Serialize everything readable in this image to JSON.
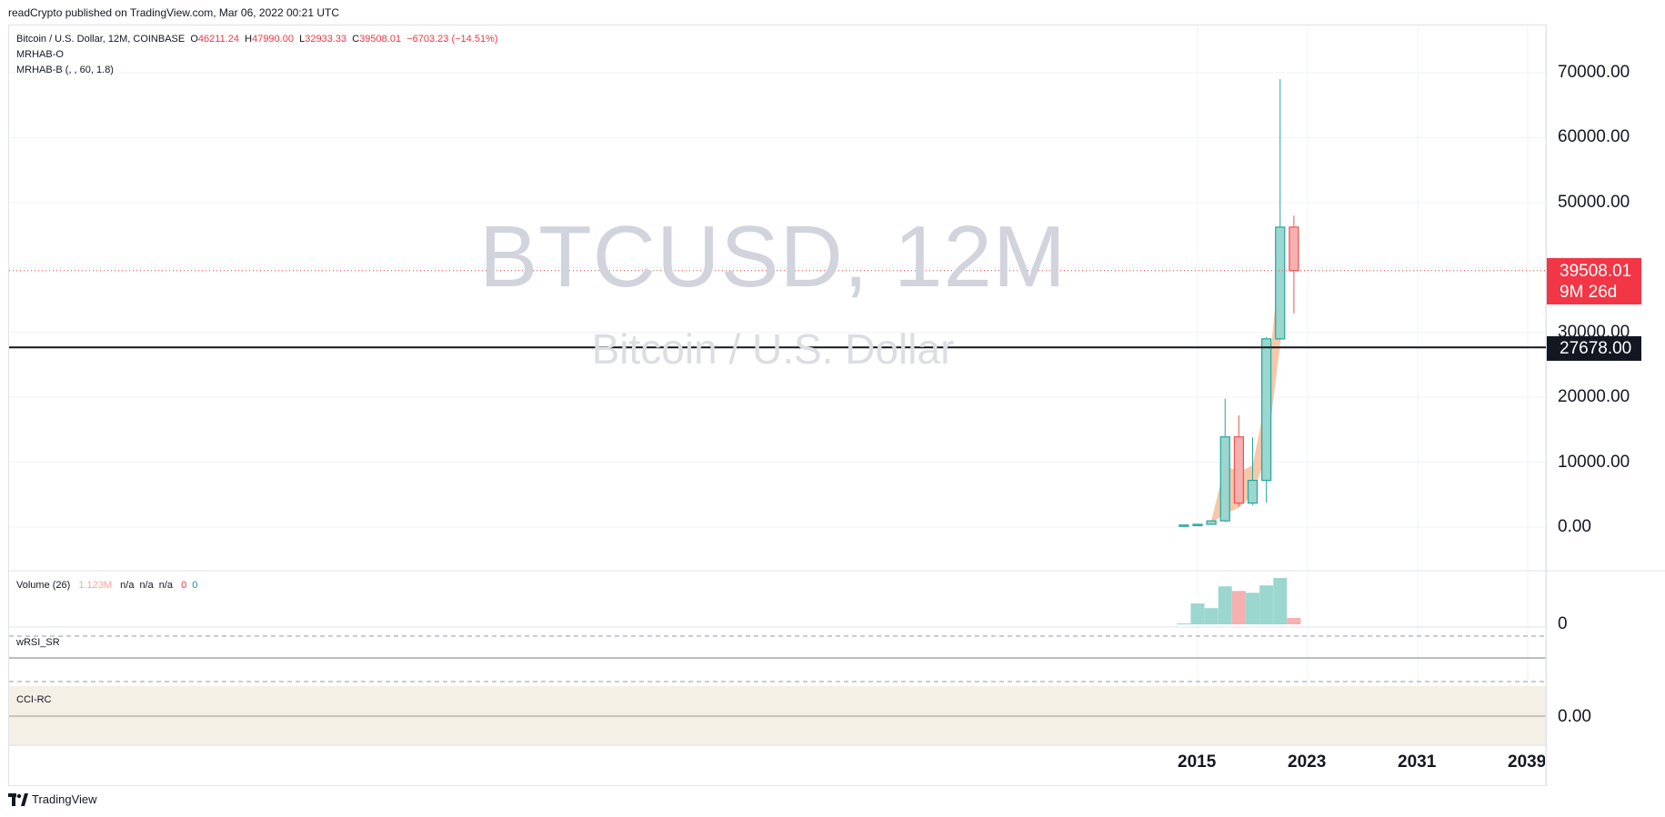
{
  "header": {
    "published_text": "readCrypto published on TradingView.com, Mar 06, 2022 00:21 UTC"
  },
  "legend": {
    "symbol": "Bitcoin / U.S. Dollar, 12M, COINBASE",
    "open_label": "O",
    "open": "46211.24",
    "high_label": "H",
    "high": "47990.00",
    "low_label": "L",
    "low": "32933.33",
    "close_label": "C",
    "close": "39508.01",
    "change": "−6703.23 (−14.51%)",
    "indicator_1": "MRHAB-O",
    "indicator_2": "MRHAB-B (, , 60, 1.8)"
  },
  "watermark": {
    "main": "BTCUSD, 12M",
    "sub": "Bitcoin / U.S. Dollar"
  },
  "volume_pane": {
    "title": "Volume (26)",
    "value": "1.123M",
    "na_1": "n/a",
    "na_2": "n/a",
    "na_3": "n/a",
    "zero_1": "0",
    "zero_2": "0",
    "axis_label": "0"
  },
  "wrsi_pane": {
    "title": "wRSI_SR"
  },
  "cci_pane": {
    "title": "CCI-RC",
    "axis_label": "0.00"
  },
  "price_axis": {
    "labels": [
      "70000.00",
      "60000.00",
      "50000.00",
      "30000.00",
      "20000.00",
      "10000.00",
      "0.00"
    ]
  },
  "time_axis": {
    "labels": [
      "2015",
      "2023",
      "2031",
      "2039"
    ]
  },
  "badges": {
    "current_price": "39508.01",
    "countdown": "9M 26d",
    "horizontal_line_price": "27678.00"
  },
  "footer": {
    "brand": "TradingView"
  },
  "colors": {
    "up": "#26a69a",
    "down": "#ef5350",
    "up_fill": "#9bd6cf",
    "down_fill": "#f7b0b0",
    "band": "#f4b48e",
    "grid": "#f0f3fa"
  },
  "chart_data": {
    "type": "candlestick",
    "title": "BTCUSD, 12M",
    "ylabel": "",
    "xlabel": "",
    "ylim": [
      -7000,
      77000
    ],
    "x_ticks": [
      2015,
      2023,
      2031,
      2039
    ],
    "horizontal_line": 27678,
    "current_price": 39508.01,
    "candles": [
      {
        "year": 2014,
        "open": 300,
        "high": 350,
        "low": 250,
        "close": 320
      },
      {
        "year": 2015,
        "open": 320,
        "high": 470,
        "low": 170,
        "close": 430
      },
      {
        "year": 2016,
        "open": 430,
        "high": 980,
        "low": 360,
        "close": 960
      },
      {
        "year": 2017,
        "open": 960,
        "high": 19800,
        "low": 780,
        "close": 13900
      },
      {
        "year": 2018,
        "open": 13900,
        "high": 17200,
        "low": 3200,
        "close": 3700
      },
      {
        "year": 2019,
        "open": 3700,
        "high": 13800,
        "low": 3400,
        "close": 7200
      },
      {
        "year": 2020,
        "open": 7200,
        "high": 29300,
        "low": 3800,
        "close": 29000
      },
      {
        "year": 2021,
        "open": 29000,
        "high": 69000,
        "low": 28800,
        "close": 46211.24
      },
      {
        "year": 2022,
        "open": 46211.24,
        "high": 47990,
        "low": 32933.33,
        "close": 39508.01
      }
    ],
    "volume": [
      {
        "year": 2014,
        "value": 0.02,
        "up": true
      },
      {
        "year": 2015,
        "value": 0.45,
        "up": true
      },
      {
        "year": 2016,
        "value": 0.35,
        "up": true
      },
      {
        "year": 2017,
        "value": 0.82,
        "up": true
      },
      {
        "year": 2018,
        "value": 0.72,
        "up": false
      },
      {
        "year": 2019,
        "value": 0.68,
        "up": true
      },
      {
        "year": 2020,
        "value": 0.84,
        "up": true
      },
      {
        "year": 2021,
        "value": 1.0,
        "up": true
      },
      {
        "year": 2022,
        "value": 0.14,
        "up": false
      }
    ],
    "band": [
      {
        "year": 2016,
        "lower": 700,
        "upper": 1000
      },
      {
        "year": 2017,
        "lower": 2000,
        "upper": 9500
      },
      {
        "year": 2018,
        "lower": 3000,
        "upper": 8500
      },
      {
        "year": 2019,
        "lower": 5000,
        "upper": 9500
      },
      {
        "year": 2020,
        "lower": 11000,
        "upper": 20000
      },
      {
        "year": 2021,
        "lower": 28000,
        "upper": 42000
      }
    ]
  }
}
